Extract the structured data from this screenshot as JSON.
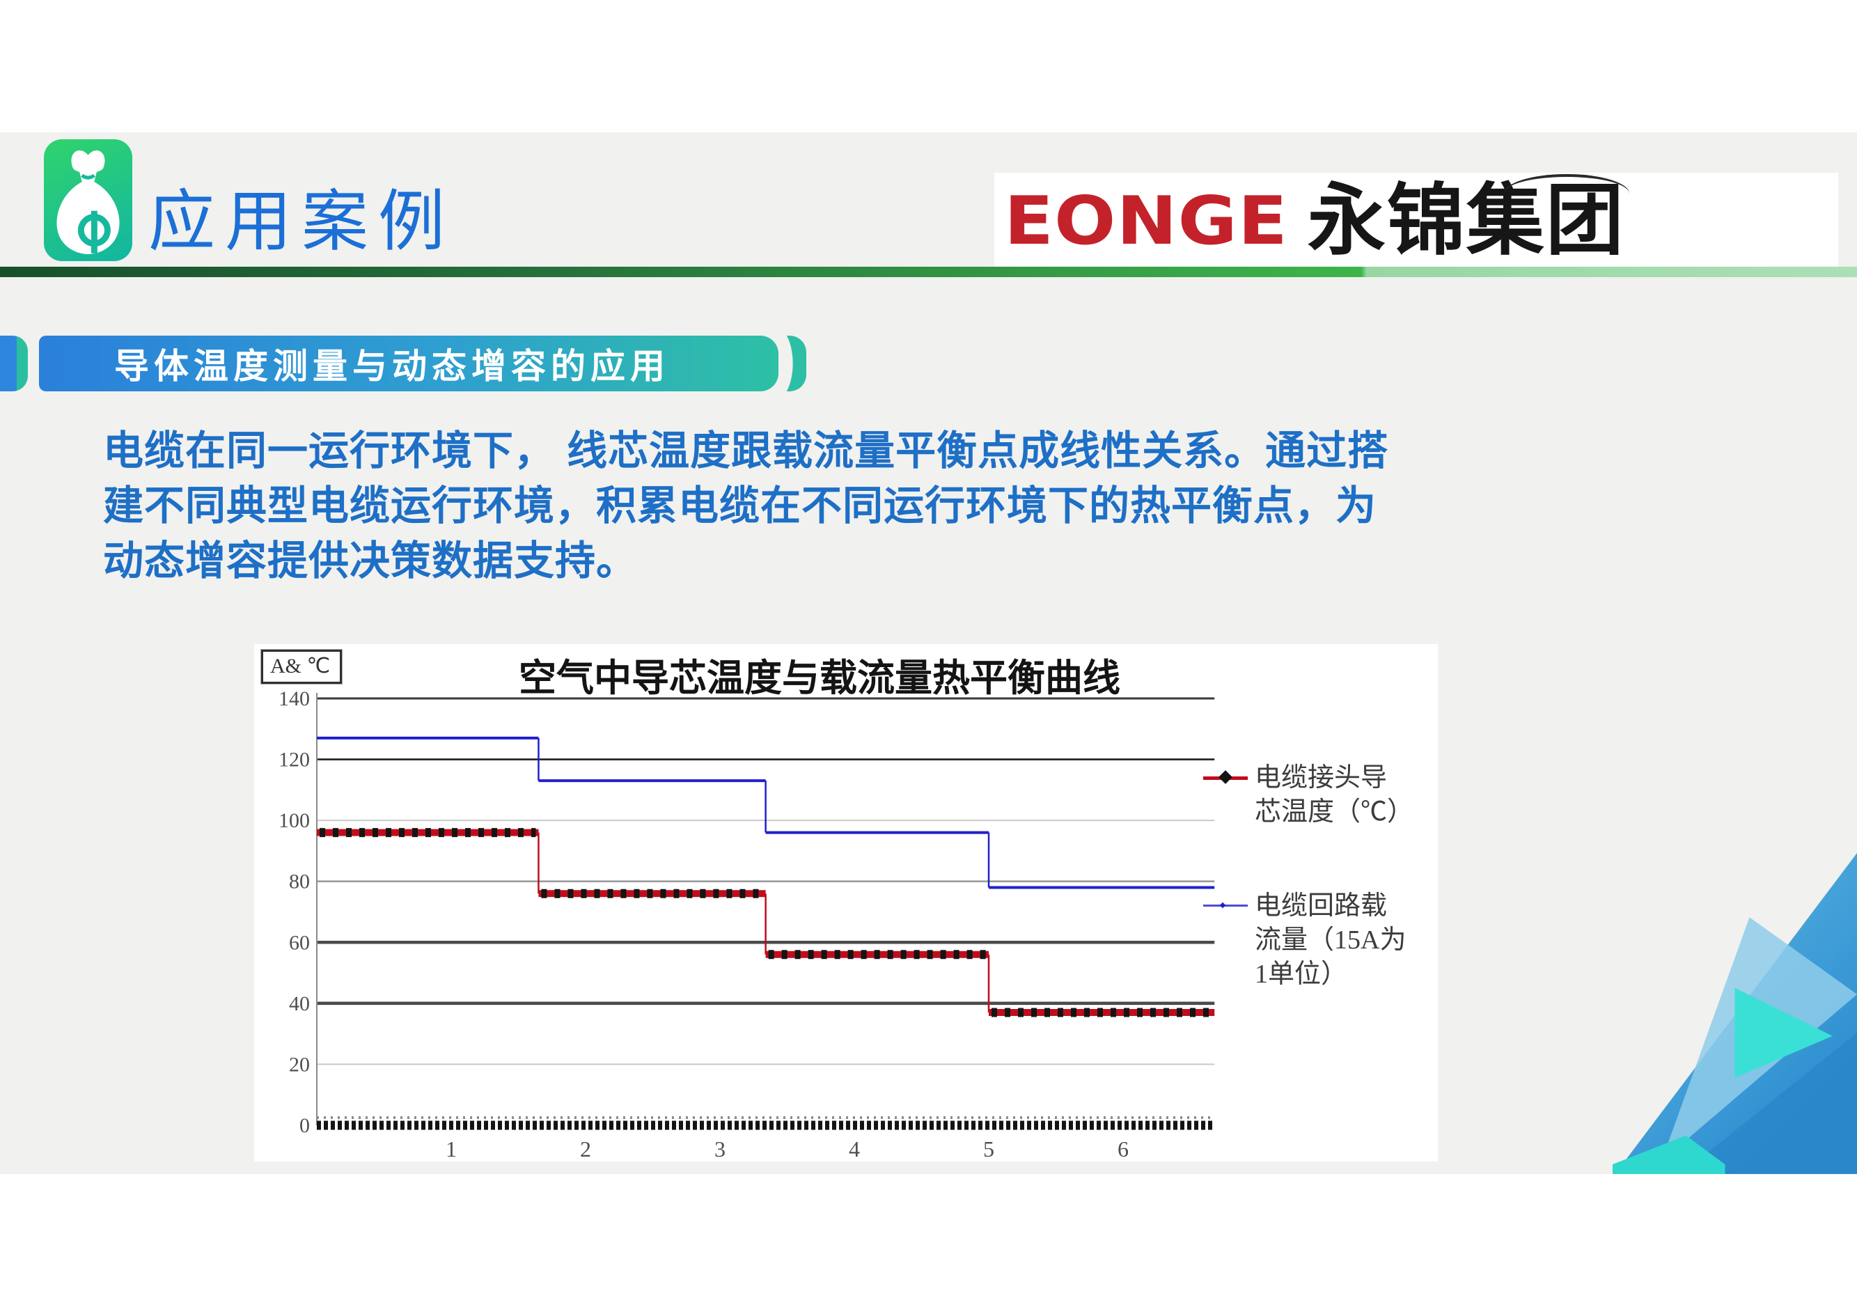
{
  "header": {
    "title": "应用案例",
    "icon": "money-bag-icon",
    "logo_en": "EONGE",
    "logo_cn": "永锦集团"
  },
  "banner": {
    "text": "导体温度测量与动态增容的应用"
  },
  "paragraph": {
    "lines": [
      "电缆在同一运行环境下， 线芯温度跟载流量平衡点成线性关系。通过搭",
      "建不同典型电缆运行环境，积累电缆在不同运行环境下的热平衡点，为",
      "动态增容提供决策数据支持。"
    ]
  },
  "chart_data": {
    "type": "line",
    "style": "step",
    "title": "空气中导芯温度与载流量热平衡曲线",
    "unit_label": "A& ℃",
    "x_ticks": [
      1,
      2,
      3,
      4,
      5,
      6
    ],
    "x_range": [
      0,
      6.68
    ],
    "y_ticks": [
      0,
      20,
      40,
      60,
      80,
      100,
      120,
      140
    ],
    "ylim": [
      0,
      140
    ],
    "grid": true,
    "legend_position": "right",
    "step_boundaries": [
      0,
      1.65,
      3.34,
      5.0,
      6.68
    ],
    "series": [
      {
        "name": "电缆接头导芯温度（℃）",
        "legend_lines": [
          "电缆接头导",
          "芯温度（℃）"
        ],
        "color": "#c00d1d",
        "marker": "diamond",
        "marker_color": "#141414",
        "values": [
          96,
          76,
          56,
          37
        ]
      },
      {
        "name": "电缆回路载流量（15A为1单位）",
        "legend_lines": [
          "电缆回路载",
          "流量（15A为",
          "1单位）"
        ],
        "color": "#2020cc",
        "marker": "tick",
        "marker_color": "#2020cc",
        "values": [
          127,
          113,
          96,
          78
        ]
      }
    ],
    "gridline_styles": {
      "140": "dark",
      "120": "dark2",
      "100": "light",
      "80": "medium",
      "60": "thick",
      "40": "thick",
      "20": "light",
      "0": "axis"
    }
  }
}
